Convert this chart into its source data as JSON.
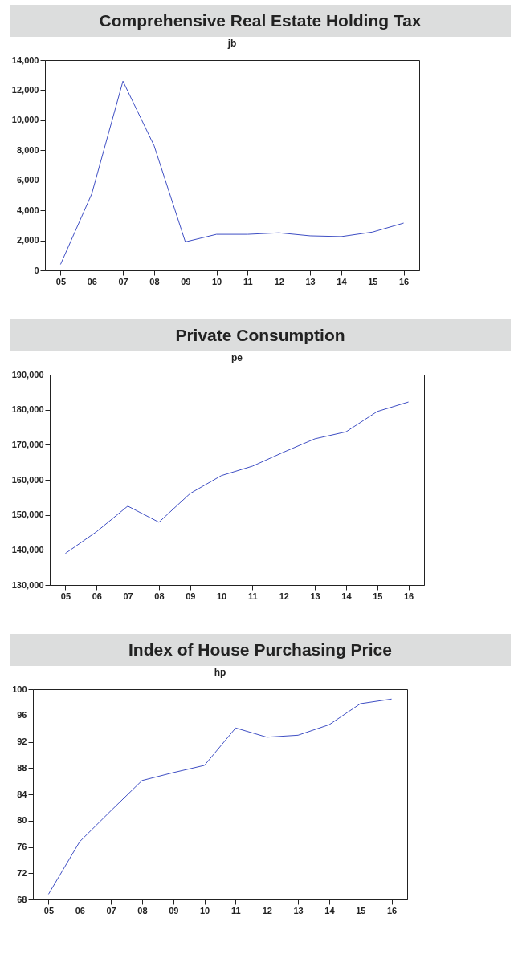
{
  "chart_data": [
    {
      "type": "line",
      "title": "Comprehensive Real Estate Holding Tax",
      "subtitle": "jb",
      "categories": [
        "05",
        "06",
        "07",
        "08",
        "09",
        "10",
        "11",
        "12",
        "13",
        "14",
        "15",
        "16"
      ],
      "values": [
        400,
        5100,
        12600,
        8300,
        1900,
        2400,
        2400,
        2500,
        2300,
        2250,
        2550,
        3150
      ],
      "color": "#3f4fc4",
      "ylim": [
        0,
        14000
      ],
      "yticks": [
        0,
        {
          "value": 2000,
          "label": "2,000"
        },
        {
          "value": 4000,
          "label": "4,000"
        },
        {
          "value": 6000,
          "label": "6,000"
        },
        {
          "value": 8000,
          "label": "8,000"
        },
        {
          "value": 10000,
          "label": "10,000"
        },
        {
          "value": 12000,
          "label": "12,000"
        },
        {
          "value": 14000,
          "label": "14,000"
        }
      ],
      "grid": false
    },
    {
      "type": "line",
      "title": "Private Consumption",
      "subtitle": "pe",
      "categories": [
        "05",
        "06",
        "07",
        "08",
        "09",
        "10",
        "11",
        "12",
        "13",
        "14",
        "15",
        "16"
      ],
      "values": [
        139000,
        145200,
        152500,
        147900,
        156100,
        161200,
        163900,
        167900,
        171700,
        173700,
        179500,
        182200
      ],
      "color": "#3f4fc4",
      "ylim": [
        130000,
        190000
      ],
      "yticks": [
        {
          "value": 130000,
          "label": "130,000"
        },
        {
          "value": 140000,
          "label": "140,000"
        },
        {
          "value": 150000,
          "label": "150,000"
        },
        {
          "value": 160000,
          "label": "160,000"
        },
        {
          "value": 170000,
          "label": "170,000"
        },
        {
          "value": 180000,
          "label": "180,000"
        },
        {
          "value": 190000,
          "label": "190,000"
        }
      ],
      "grid": false
    },
    {
      "type": "line",
      "title": "Index of House Purchasing Price",
      "subtitle": "hp",
      "categories": [
        "05",
        "06",
        "07",
        "08",
        "09",
        "10",
        "11",
        "12",
        "13",
        "14",
        "15",
        "16"
      ],
      "values": [
        68.8,
        76.8,
        81.5,
        86.1,
        87.3,
        88.4,
        94.1,
        92.7,
        93.0,
        94.6,
        97.8,
        98.5
      ],
      "color": "#3f4fc4",
      "ylim": [
        68,
        100
      ],
      "yticks": [
        68,
        72,
        76,
        80,
        84,
        88,
        92,
        96,
        100
      ],
      "grid": false
    }
  ]
}
